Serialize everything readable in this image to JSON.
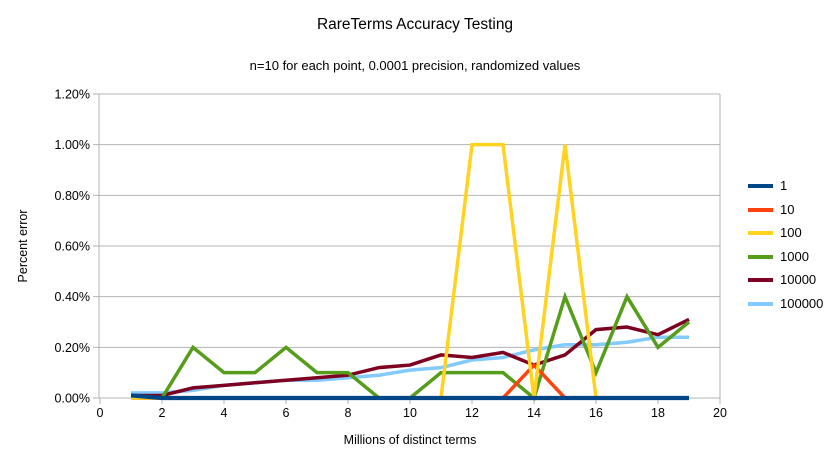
{
  "title": "RareTerms Accuracy Testing",
  "subtitle": "n=10 for each point, 0.0001 precision, randomized values",
  "chart_data": {
    "type": "line",
    "title": "RareTerms Accuracy Testing",
    "subtitle": "n=10 for each point, 0.0001 precision, randomized values",
    "xlabel": "Millions of distinct terms",
    "ylabel": "Percent error",
    "xlim": [
      0,
      20
    ],
    "ylim_percent": [
      0,
      1.2
    ],
    "x_ticks": [
      0,
      2,
      4,
      6,
      8,
      10,
      12,
      14,
      16,
      18,
      20
    ],
    "y_ticks_percent": [
      0.0,
      0.2,
      0.4,
      0.6,
      0.8,
      1.0,
      1.2
    ],
    "y_tick_labels": [
      "0.00%",
      "0.20%",
      "0.40%",
      "0.60%",
      "0.80%",
      "1.00%",
      "1.20%"
    ],
    "grid": true,
    "legend_position": "right",
    "x": [
      1,
      2,
      3,
      4,
      5,
      6,
      7,
      8,
      9,
      10,
      11,
      12,
      13,
      14,
      15,
      16,
      17,
      18,
      19
    ],
    "series": [
      {
        "name": "1",
        "color": "#004586",
        "values_percent": [
          0.01,
          0,
          0,
          0,
          0,
          0,
          0,
          0,
          0,
          0,
          0,
          0,
          0,
          0,
          0,
          0,
          0,
          0,
          0
        ]
      },
      {
        "name": "10",
        "color": "#ff420e",
        "values_percent": [
          0,
          0,
          0,
          0,
          0,
          0,
          0,
          0,
          0,
          0,
          0,
          0,
          0,
          0.13,
          0,
          0,
          0,
          0,
          0
        ]
      },
      {
        "name": "100",
        "color": "#ffd320",
        "values_percent": [
          0,
          0,
          0,
          0,
          0,
          0,
          0,
          0,
          0,
          0,
          0,
          1.0,
          1.0,
          0,
          1.0,
          0,
          0,
          0,
          0
        ]
      },
      {
        "name": "1000",
        "color": "#579d1c",
        "values_percent": [
          0,
          0,
          0.2,
          0.1,
          0.1,
          0.2,
          0.1,
          0.1,
          0,
          0,
          0.1,
          0.1,
          0.1,
          0,
          0.4,
          0.1,
          0.4,
          0.2,
          0.3
        ]
      },
      {
        "name": "10000",
        "color": "#7e0021",
        "values_percent": [
          0.01,
          0.01,
          0.04,
          0.05,
          0.06,
          0.07,
          0.08,
          0.09,
          0.12,
          0.13,
          0.17,
          0.16,
          0.18,
          0.13,
          0.17,
          0.27,
          0.28,
          0.25,
          0.31
        ]
      },
      {
        "name": "100000",
        "color": "#83caff",
        "values_percent": [
          0.02,
          0.02,
          0.03,
          0.05,
          0.06,
          0.07,
          0.07,
          0.08,
          0.09,
          0.11,
          0.12,
          0.15,
          0.16,
          0.19,
          0.21,
          0.21,
          0.22,
          0.24,
          0.24
        ]
      }
    ],
    "draw_order": [
      "100000",
      "10000",
      "1000",
      "10",
      "100",
      "1"
    ],
    "colors": {
      "grid": "#b3b3b3",
      "axis": "#b3b3b3",
      "text": "#000000",
      "background": "#ffffff"
    }
  }
}
